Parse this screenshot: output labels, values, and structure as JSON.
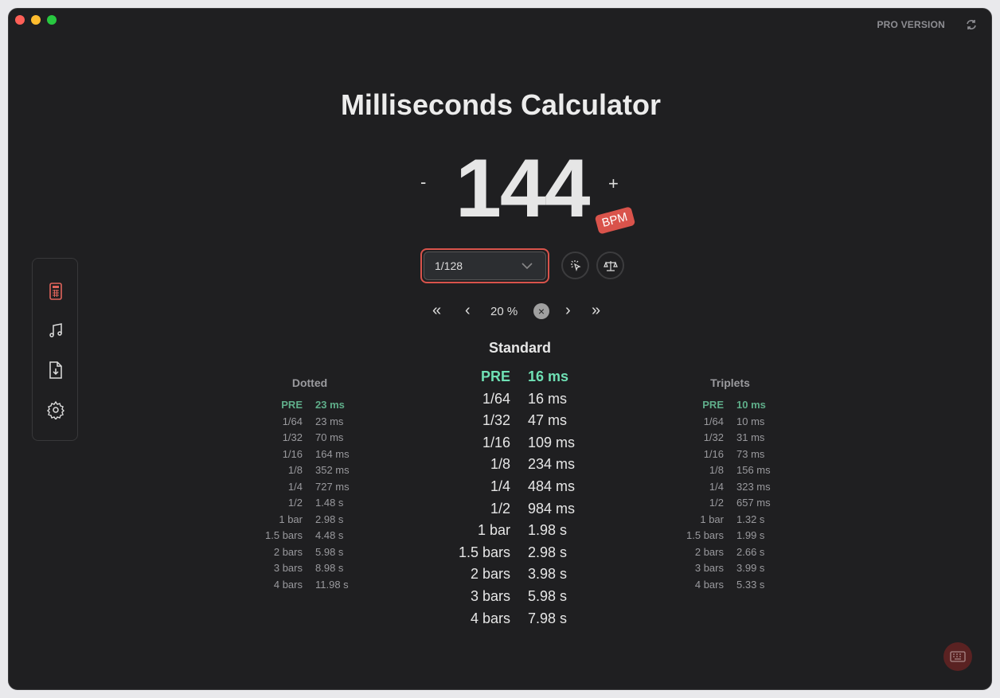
{
  "window": {
    "pro_label": "PRO VERSION",
    "refresh_icon": "refresh-icon"
  },
  "title": "Milliseconds Calculator",
  "bpm": {
    "value": "144",
    "unit": "BPM",
    "minus": "-",
    "plus": "+"
  },
  "dropdown": {
    "selected": "1/128"
  },
  "nav": {
    "first": "«",
    "prev": "‹",
    "percent": "20 %",
    "clear": "×",
    "next": "›",
    "last": "»"
  },
  "standard": {
    "title": "Standard",
    "rows": [
      [
        "PRE",
        "16 ms"
      ],
      [
        "1/64",
        "16 ms"
      ],
      [
        "1/32",
        "47 ms"
      ],
      [
        "1/16",
        "109 ms"
      ],
      [
        "1/8",
        "234 ms"
      ],
      [
        "1/4",
        "484 ms"
      ],
      [
        "1/2",
        "984 ms"
      ],
      [
        "1 bar",
        "1.98 s"
      ],
      [
        "1.5 bars",
        "2.98 s"
      ],
      [
        "2 bars",
        "3.98 s"
      ],
      [
        "3 bars",
        "5.98 s"
      ],
      [
        "4 bars",
        "7.98 s"
      ]
    ]
  },
  "dotted": {
    "title": "Dotted",
    "rows": [
      [
        "PRE",
        "23 ms"
      ],
      [
        "1/64",
        "23 ms"
      ],
      [
        "1/32",
        "70 ms"
      ],
      [
        "1/16",
        "164 ms"
      ],
      [
        "1/8",
        "352 ms"
      ],
      [
        "1/4",
        "727 ms"
      ],
      [
        "1/2",
        "1.48 s"
      ],
      [
        "1 bar",
        "2.98 s"
      ],
      [
        "1.5 bars",
        "4.48 s"
      ],
      [
        "2 bars",
        "5.98 s"
      ],
      [
        "3 bars",
        "8.98 s"
      ],
      [
        "4 bars",
        "11.98 s"
      ]
    ]
  },
  "triplets": {
    "title": "Triplets",
    "rows": [
      [
        "PRE",
        "10 ms"
      ],
      [
        "1/64",
        "10 ms"
      ],
      [
        "1/32",
        "31 ms"
      ],
      [
        "1/16",
        "73 ms"
      ],
      [
        "1/8",
        "156 ms"
      ],
      [
        "1/4",
        "323 ms"
      ],
      [
        "1/2",
        "657 ms"
      ],
      [
        "1 bar",
        "1.32 s"
      ],
      [
        "1.5 bars",
        "1.99 s"
      ],
      [
        "2 bars",
        "2.66 s"
      ],
      [
        "3 bars",
        "3.99 s"
      ],
      [
        "4 bars",
        "5.33 s"
      ]
    ]
  },
  "colors": {
    "accent": "#d9534b",
    "pre_standard": "#6fe0b4",
    "pre_side": "#5fae8a",
    "bg": "#1f1f21"
  },
  "sidebar": {
    "items": [
      "calculator-icon",
      "music-note-icon",
      "file-download-icon",
      "gear-icon"
    ]
  }
}
